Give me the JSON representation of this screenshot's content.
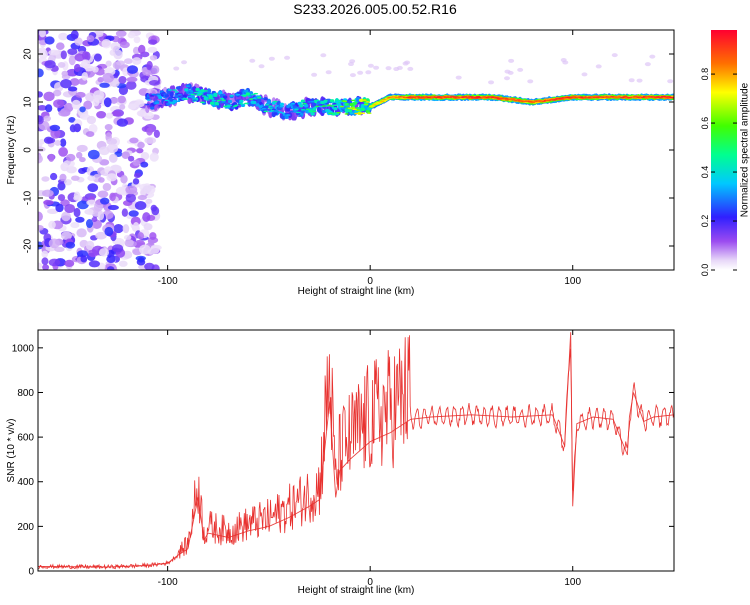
{
  "title": "S233.2026.005.00.52.R16",
  "chart_data": [
    {
      "type": "heatmap",
      "xlabel": "Height of straight line (km)",
      "ylabel": "Frequency (Hz)",
      "xlim": [
        -164,
        150
      ],
      "ylim": [
        -25,
        25
      ],
      "xticks": [
        -100,
        0,
        100
      ],
      "xtick_labels": [
        "-100",
        "0",
        "100"
      ],
      "yticks": [
        -20,
        -10,
        0,
        10,
        20
      ],
      "ytick_labels": [
        "-20",
        "-10",
        "0",
        "10",
        "20"
      ],
      "colorbar": {
        "label": "Normalized spectral amplitude",
        "range": [
          0,
          0.98
        ],
        "ticks": [
          0,
          0.2,
          0.4,
          0.6,
          0.8
        ],
        "tick_labels": [
          "0.0",
          "0.2",
          "0.4",
          "0.6",
          "0.8"
        ],
        "colormap": "rainbow (white-violet-blue-cyan-green-yellow-red)"
      },
      "ridge": {
        "description": "dominant frequency track",
        "x": [
          -110,
          -100,
          -90,
          -80,
          -70,
          -60,
          -50,
          -40,
          -30,
          -20,
          -10,
          0,
          10,
          20,
          40,
          60,
          80,
          100,
          120,
          150
        ],
        "frequency_hz": [
          10,
          11,
          12,
          11,
          10,
          11,
          9,
          8,
          9,
          9,
          9,
          9,
          11,
          11,
          11,
          11,
          10,
          11,
          11,
          11
        ],
        "amplitude": [
          0.3,
          0.35,
          0.4,
          0.45,
          0.4,
          0.45,
          0.4,
          0.4,
          0.45,
          0.5,
          0.6,
          0.75,
          0.85,
          0.95,
          0.95,
          0.95,
          0.9,
          0.95,
          0.92,
          0.95
        ]
      },
      "noise_region": {
        "x_range": [
          -164,
          -105
        ],
        "frequency_range": [
          -25,
          25
        ],
        "amplitude": "0.05-0.3"
      },
      "grid": false
    },
    {
      "type": "line",
      "xlabel": "Height of straight line (km)",
      "ylabel": "SNR (10 * v/v)",
      "xlim": [
        -164,
        150
      ],
      "ylim": [
        0,
        1080
      ],
      "xticks": [
        -100,
        0,
        100
      ],
      "xtick_labels": [
        "-100",
        "0",
        "100"
      ],
      "yticks": [
        0,
        200,
        400,
        600,
        800,
        1000
      ],
      "ytick_labels": [
        "0",
        "200",
        "400",
        "600",
        "800",
        "1000"
      ],
      "color": "#e8312f",
      "series": [
        {
          "x": [
            -164,
            -130,
            -110,
            -100,
            -95,
            -90,
            -85,
            -82,
            -80,
            -70,
            -60,
            -50,
            -40,
            -30,
            -25,
            -20,
            -17,
            -15,
            -10,
            0,
            10,
            20,
            30,
            50,
            70,
            90,
            96,
            98,
            99,
            100,
            102,
            110,
            120,
            127,
            128,
            130,
            135,
            140,
            150
          ],
          "y": [
            20,
            18,
            25,
            35,
            70,
            100,
            330,
            140,
            170,
            150,
            180,
            200,
            240,
            290,
            320,
            760,
            330,
            450,
            500,
            580,
            620,
            680,
            690,
            700,
            690,
            700,
            560,
            900,
            1070,
            290,
            660,
            690,
            680,
            520,
            690,
            800,
            670,
            690,
            700
          ]
        }
      ],
      "grid": false
    }
  ]
}
